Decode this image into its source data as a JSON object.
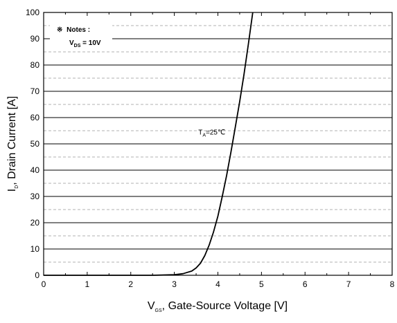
{
  "chart_data": {
    "type": "line",
    "title": "",
    "xlabel": {
      "main": "V",
      "sub": "GS",
      "rest": ", Gate-Source Voltage [V]"
    },
    "ylabel": {
      "main": "I",
      "sub": "D",
      "rest": ", Drain Current [A]"
    },
    "xlim": [
      0,
      8
    ],
    "ylim": [
      0,
      100
    ],
    "x_ticks": [
      "0",
      "1",
      "2",
      "3",
      "4",
      "5",
      "6",
      "7",
      "8"
    ],
    "y_ticks": [
      "0",
      "10",
      "20",
      "30",
      "40",
      "50",
      "60",
      "70",
      "80",
      "90",
      "100"
    ],
    "grid": true,
    "notes": {
      "symbol": "※",
      "title": "Notes :",
      "line2": {
        "main": "V",
        "sub": "DS",
        "rest": " = 10V"
      }
    },
    "annotation": {
      "main": "T",
      "sub": "A",
      "rest": "=25℃",
      "x": 3.55,
      "y": 53.5
    },
    "series": [
      {
        "x": [
          0,
          1,
          2,
          2.5,
          3,
          3.2,
          3.4,
          3.5,
          3.6,
          3.7,
          3.8,
          3.9,
          4.0,
          4.1,
          4.2,
          4.3,
          4.4,
          4.5,
          4.6,
          4.7,
          4.8
        ],
        "y": [
          0,
          0,
          0,
          0,
          0.2,
          0.6,
          1.6,
          2.8,
          4.6,
          7.5,
          11.5,
          16.5,
          22.5,
          30,
          38,
          47,
          56.5,
          66,
          76.5,
          88,
          100
        ]
      }
    ]
  }
}
